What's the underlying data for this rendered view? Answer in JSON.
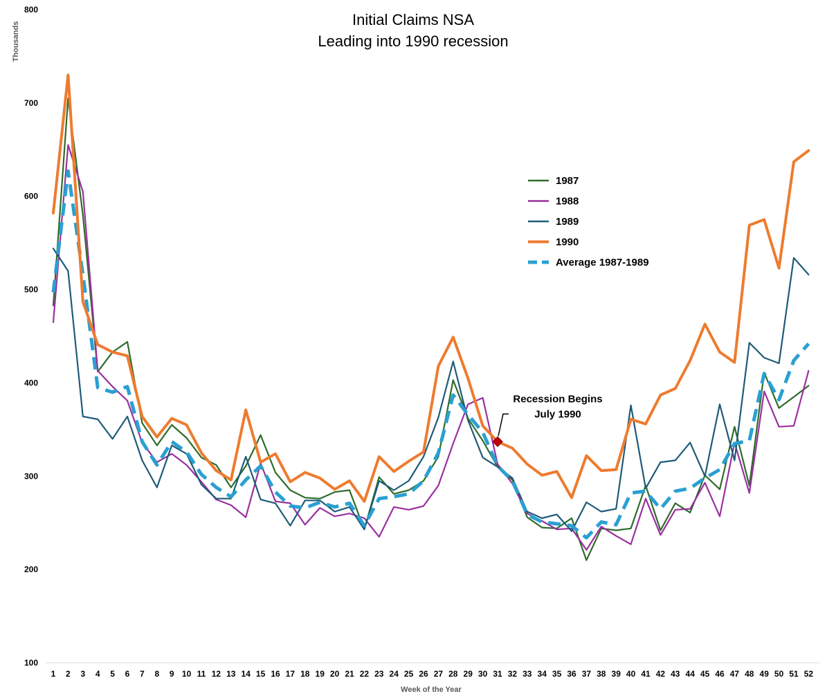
{
  "chart_data": {
    "type": "line",
    "title": [
      "Initial Claims NSA",
      "Leading into 1990 recession"
    ],
    "xlabel": "Week of the Year",
    "ylabel": "Thousands",
    "ylim": [
      100,
      800
    ],
    "yticks": [
      "100",
      "200",
      "300",
      "400",
      "500",
      "600",
      "700",
      "800"
    ],
    "x": [
      1,
      2,
      3,
      4,
      5,
      6,
      7,
      8,
      9,
      10,
      11,
      12,
      13,
      14,
      15,
      16,
      17,
      18,
      19,
      20,
      21,
      22,
      23,
      24,
      25,
      26,
      27,
      28,
      29,
      30,
      31,
      32,
      33,
      34,
      35,
      36,
      37,
      38,
      39,
      40,
      41,
      42,
      43,
      44,
      45,
      46,
      47,
      48,
      49,
      50,
      51,
      52
    ],
    "grid": false,
    "legend_position": "upper-right",
    "series": [
      {
        "name": "1987",
        "color": "#2e6b2a",
        "values": [
          483,
          705,
          580,
          412,
          433,
          444,
          357,
          333,
          355,
          341,
          320,
          312,
          288,
          311,
          344,
          304,
          285,
          277,
          276,
          283,
          285,
          243,
          299,
          281,
          285,
          295,
          321,
          403,
          362,
          338,
          310,
          296,
          256,
          245,
          244,
          255,
          210,
          244,
          242,
          244,
          290,
          242,
          271,
          261,
          301,
          286,
          353,
          290,
          411,
          373,
          385,
          397
        ]
      },
      {
        "name": "1988",
        "color": "#9a2fa0",
        "values": [
          465,
          655,
          605,
          413,
          396,
          381,
          336,
          315,
          324,
          312,
          294,
          275,
          269,
          256,
          314,
          273,
          271,
          248,
          266,
          257,
          260,
          255,
          235,
          267,
          264,
          268,
          290,
          335,
          377,
          384,
          313,
          292,
          260,
          252,
          243,
          244,
          221,
          246,
          236,
          227,
          276,
          237,
          264,
          265,
          293,
          257,
          336,
          282,
          391,
          353,
          354,
          413
        ]
      },
      {
        "name": "1989",
        "color": "#1e5a78",
        "values": [
          544,
          520,
          364,
          361,
          340,
          364,
          317,
          288,
          333,
          324,
          291,
          276,
          276,
          321,
          275,
          271,
          247,
          274,
          274,
          262,
          267,
          243,
          295,
          285,
          295,
          321,
          363,
          423,
          360,
          320,
          310,
          298,
          262,
          255,
          259,
          241,
          272,
          262,
          265,
          376,
          287,
          315,
          317,
          336,
          300,
          377,
          317,
          443,
          427,
          421,
          534,
          516
        ]
      },
      {
        "name": "1990",
        "color": "#ee7b2f",
        "values": [
          582,
          730,
          487,
          441,
          433,
          429,
          364,
          342,
          362,
          355,
          325,
          306,
          296,
          371,
          315,
          324,
          294,
          304,
          298,
          286,
          295,
          273,
          321,
          305,
          316,
          326,
          418,
          449,
          405,
          354,
          337,
          330,
          313,
          301,
          305,
          277,
          322,
          306,
          307,
          361,
          356,
          387,
          394,
          424,
          463,
          433,
          422,
          569,
          575,
          523,
          637,
          649
        ]
      },
      {
        "name": "Average 1987-1989",
        "color": "#2aa0d2",
        "dashed": true,
        "values": [
          497,
          627,
          516,
          395,
          390,
          396,
          337,
          312,
          337,
          326,
          302,
          288,
          278,
          296,
          311,
          283,
          268,
          266,
          272,
          267,
          271,
          247,
          276,
          278,
          281,
          295,
          325,
          387,
          366,
          347,
          311,
          295,
          259,
          251,
          249,
          247,
          234,
          251,
          248,
          282,
          284,
          265,
          284,
          287,
          298,
          307,
          335,
          338,
          410,
          382,
          424,
          442
        ]
      }
    ],
    "annotations": [
      {
        "text": [
          "Recession Begins",
          "July 1990"
        ],
        "x": 31,
        "y": 337,
        "marker_color": "#c00000"
      }
    ]
  }
}
